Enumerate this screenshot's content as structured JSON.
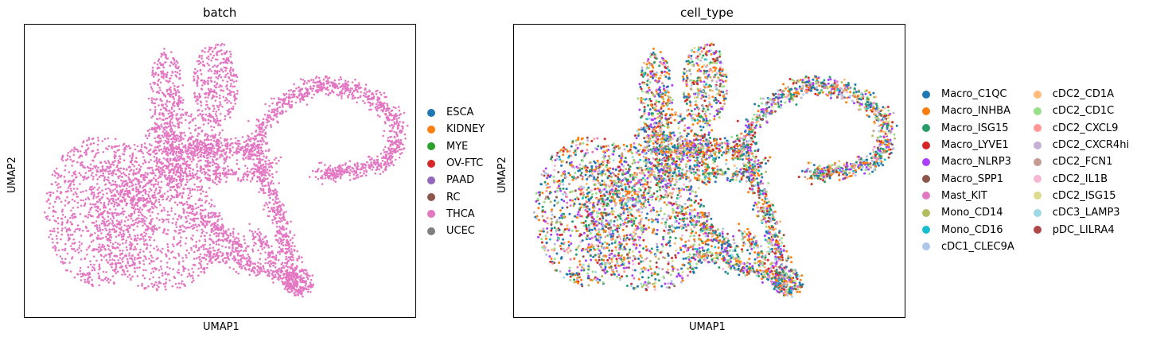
{
  "chart_data": [
    {
      "type": "scatter",
      "title": "batch",
      "xlabel": "UMAP1",
      "ylabel": "UMAP2",
      "xticks": [],
      "yticks": [],
      "grid": false,
      "legend_placement": "right, outside plot",
      "legend": [
        {
          "label": "ESCA",
          "color": "#1f77b4"
        },
        {
          "label": "KIDNEY",
          "color": "#ff7f0e"
        },
        {
          "label": "MYE",
          "color": "#2ca02c"
        },
        {
          "label": "OV-FTC",
          "color": "#d62728"
        },
        {
          "label": "PAAD",
          "color": "#9467bd"
        },
        {
          "label": "RC",
          "color": "#8c564b"
        },
        {
          "label": "THCA",
          "color": "#e377c2"
        },
        {
          "label": "UCEC",
          "color": "#7f7f7f"
        }
      ],
      "point_color_series": "THCA"
    },
    {
      "type": "scatter",
      "title": "cell_type",
      "xlabel": "UMAP1",
      "ylabel": "UMAP2",
      "xticks": [],
      "yticks": [],
      "grid": false,
      "legend_placement": "right, outside plot, two columns",
      "legend": [
        {
          "label": "Macro_C1QC",
          "color": "#1f77b4"
        },
        {
          "label": "Macro_INHBA",
          "color": "#ff7f0e"
        },
        {
          "label": "Macro_ISG15",
          "color": "#279e68"
        },
        {
          "label": "Macro_LYVE1",
          "color": "#d62728"
        },
        {
          "label": "Macro_NLRP3",
          "color": "#aa40fc"
        },
        {
          "label": "Macro_SPP1",
          "color": "#8c564b"
        },
        {
          "label": "Mast_KIT",
          "color": "#e377c2"
        },
        {
          "label": "Mono_CD14",
          "color": "#b5bd61"
        },
        {
          "label": "Mono_CD16",
          "color": "#17becf"
        },
        {
          "label": "cDC1_CLEC9A",
          "color": "#aec7e8"
        },
        {
          "label": "cDC2_CD1A",
          "color": "#ffbb78"
        },
        {
          "label": "cDC2_CD1C",
          "color": "#98df8a"
        },
        {
          "label": "cDC2_CXCL9",
          "color": "#ff9896"
        },
        {
          "label": "cDC2_CXCR4hi",
          "color": "#c5b0d5"
        },
        {
          "label": "cDC2_FCN1",
          "color": "#c49c94"
        },
        {
          "label": "cDC2_IL1B",
          "color": "#f7b6d2"
        },
        {
          "label": "cDC2_ISG15",
          "color": "#dbdb8d"
        },
        {
          "label": "cDC3_LAMP3",
          "color": "#9edae5"
        },
        {
          "label": "pDC_LILRA4",
          "color": "#ad494a"
        }
      ]
    }
  ]
}
